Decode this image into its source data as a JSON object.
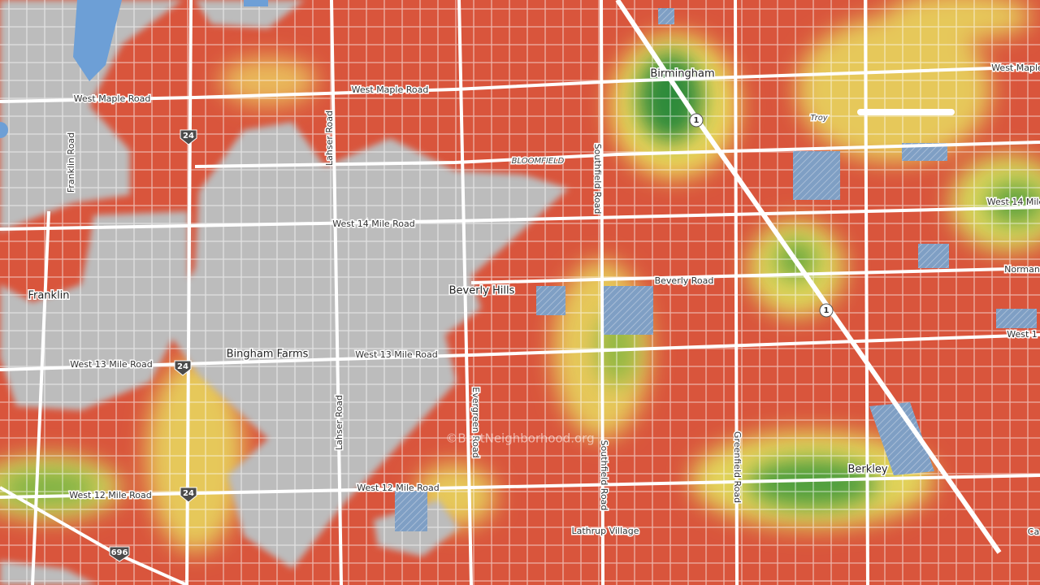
{
  "labels": [
    "West Maple Road",
    "West Maple Road",
    "West Maple",
    "Birmingham",
    "Troy",
    "BLOOMFIELD",
    "Southfield Road",
    "Lahser Road",
    "Franklin Road",
    "West 14 Mile Road",
    "West 14 Mile",
    "Norman",
    "Beverly Road",
    "Beverly Hills",
    "Franklin",
    "West 13 Mile Road",
    "West 13 Mile Road",
    "Bingham Farms",
    "West 1",
    "Evergreen Road",
    "Greenfield Road",
    "Southfield Road",
    "Lahser Road",
    "Berkley",
    "West 12 Mile Road",
    "West 12 Mile Road",
    "Lathrup Village",
    "Ca"
  ],
  "shields": [
    "24",
    "24",
    "24",
    "1",
    "1",
    "696"
  ],
  "watermark": "©BestNeighborhood.org"
}
